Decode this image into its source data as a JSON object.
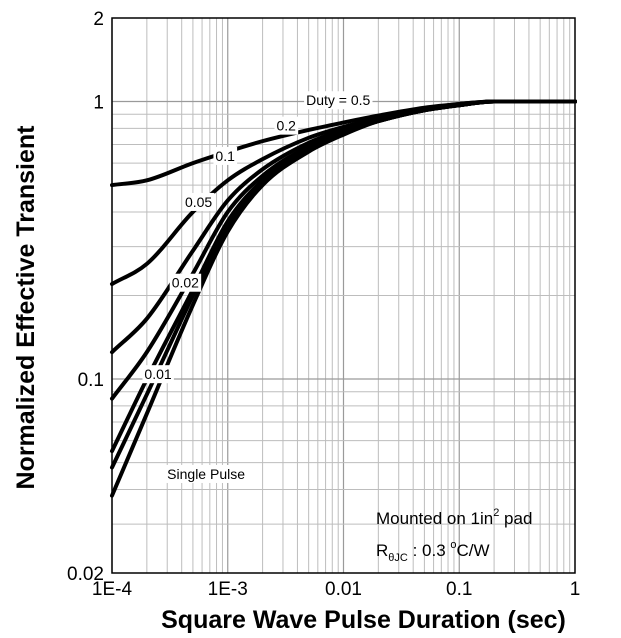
{
  "chart_data": {
    "type": "line",
    "xlabel": "Square Wave Pulse Duration (sec)",
    "ylabel": "Normalized Effective Transient",
    "x_scale": "log",
    "y_scale": "log",
    "xlim": [
      0.0001,
      1
    ],
    "ylim": [
      0.02,
      2
    ],
    "grid": true,
    "x_ticks": [
      {
        "value": 0.0001,
        "label": "1E-4"
      },
      {
        "value": 0.001,
        "label": "1E-3"
      },
      {
        "value": 0.01,
        "label": "0.01"
      },
      {
        "value": 0.1,
        "label": "0.1"
      },
      {
        "value": 1,
        "label": "1"
      }
    ],
    "y_ticks": [
      {
        "value": 2,
        "label": "2"
      },
      {
        "value": 1,
        "label": "1"
      },
      {
        "value": 0.1,
        "label": "0.1"
      },
      {
        "value": 0.02,
        "label": "0.02"
      }
    ],
    "series": [
      {
        "name": "Duty = 0.5",
        "x": [
          0.0001,
          0.0002,
          0.0005,
          0.001,
          0.002,
          0.005,
          0.01,
          0.02,
          0.05,
          0.1,
          0.2,
          0.5,
          1
        ],
        "y": [
          0.5,
          0.52,
          0.6,
          0.66,
          0.72,
          0.79,
          0.84,
          0.89,
          0.95,
          0.98,
          1.0,
          1.0,
          1.0
        ]
      },
      {
        "name": "0.2",
        "x": [
          0.0001,
          0.0002,
          0.0005,
          0.001,
          0.002,
          0.005,
          0.01,
          0.02,
          0.05,
          0.1,
          0.2,
          0.5,
          1
        ],
        "y": [
          0.22,
          0.26,
          0.4,
          0.52,
          0.62,
          0.74,
          0.81,
          0.87,
          0.94,
          0.98,
          1.0,
          1.0,
          1.0
        ]
      },
      {
        "name": "0.1",
        "x": [
          0.0001,
          0.0002,
          0.0005,
          0.001,
          0.002,
          0.005,
          0.01,
          0.02,
          0.05,
          0.1,
          0.2,
          0.5,
          1
        ],
        "y": [
          0.125,
          0.165,
          0.29,
          0.44,
          0.57,
          0.71,
          0.79,
          0.86,
          0.93,
          0.97,
          1.0,
          1.0,
          1.0
        ]
      },
      {
        "name": "0.05",
        "x": [
          0.0001,
          0.0002,
          0.0005,
          0.001,
          0.002,
          0.005,
          0.01,
          0.02,
          0.05,
          0.1,
          0.2,
          0.5,
          1
        ],
        "y": [
          0.085,
          0.125,
          0.24,
          0.4,
          0.54,
          0.69,
          0.78,
          0.85,
          0.93,
          0.97,
          1.0,
          1.0,
          1.0
        ]
      },
      {
        "name": "0.02",
        "x": [
          0.0001,
          0.0002,
          0.0005,
          0.001,
          0.002,
          0.005,
          0.01,
          0.02,
          0.05,
          0.1,
          0.2,
          0.5,
          1
        ],
        "y": [
          0.055,
          0.1,
          0.21,
          0.37,
          0.52,
          0.68,
          0.77,
          0.85,
          0.93,
          0.97,
          1.0,
          1.0,
          1.0
        ]
      },
      {
        "name": "0.01",
        "x": [
          0.0001,
          0.0002,
          0.0005,
          0.001,
          0.002,
          0.005,
          0.01,
          0.02,
          0.05,
          0.1,
          0.2,
          0.5,
          1
        ],
        "y": [
          0.048,
          0.088,
          0.2,
          0.36,
          0.51,
          0.67,
          0.77,
          0.85,
          0.93,
          0.97,
          1.0,
          1.0,
          1.0
        ]
      },
      {
        "name": "Single Pulse",
        "x": [
          0.0001,
          0.0002,
          0.0005,
          0.001,
          0.002,
          0.005,
          0.01,
          0.02,
          0.05,
          0.1,
          0.2,
          0.5,
          1
        ],
        "y": [
          0.038,
          0.075,
          0.185,
          0.34,
          0.5,
          0.66,
          0.76,
          0.85,
          0.93,
          0.97,
          1.0,
          1.0,
          1.0
        ]
      }
    ],
    "curve_labels": [
      {
        "text": "Duty = 0.5",
        "x": 0.009,
        "y": 1.0
      },
      {
        "text": "0.2",
        "x": 0.0032,
        "y": 0.81
      },
      {
        "text": "0.1",
        "x": 0.00095,
        "y": 0.63
      },
      {
        "text": "0.05",
        "x": 0.00056,
        "y": 0.43
      },
      {
        "text": "0.02",
        "x": 0.00043,
        "y": 0.22
      },
      {
        "text": "0.01",
        "x": 0.00025,
        "y": 0.103
      },
      {
        "text": "Single Pulse",
        "x": 0.00065,
        "y": 0.045
      }
    ],
    "annotations": {
      "mounted_text": "Mounted on 1in",
      "mounted_sup": "2",
      "mounted_suffix": " pad",
      "r_symbol": "R",
      "r_subscript": "θJC",
      "r_value": " : 0.3 ",
      "r_unit_sup": "o",
      "r_unit": "C/W"
    }
  }
}
